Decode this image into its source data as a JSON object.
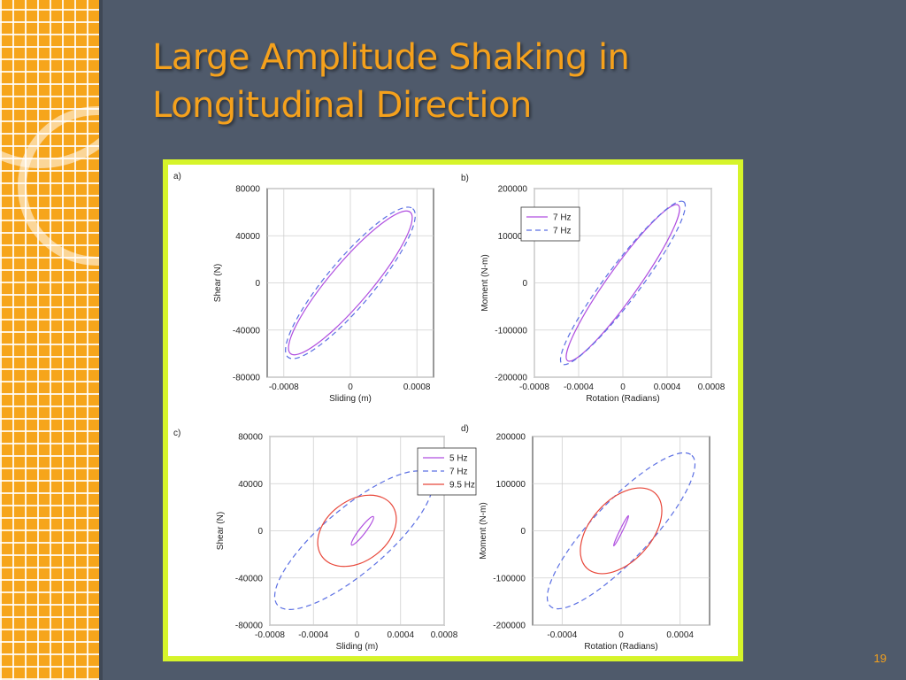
{
  "title": "Large Amplitude Shaking in Longitudinal Direction",
  "page_number": "19",
  "colors": {
    "background": "#4f5a6b",
    "accent": "#f5a11c",
    "figure_border": "#d6f42a"
  },
  "chart_data": [
    {
      "type": "line",
      "panel_label": "a)",
      "xlabel": "Sliding (m)",
      "ylabel": "Shear (N)",
      "xlim": [
        -0.001,
        0.001
      ],
      "ylim": [
        -80000,
        80000
      ],
      "xticks": [
        -0.0008,
        0,
        0.0008
      ],
      "xtick_labels": [
        "-0.0008",
        "0",
        "0.0008"
      ],
      "yticks": [
        80000,
        40000,
        0,
        -40000,
        -80000
      ],
      "ytick_labels": [
        "80000",
        "40000",
        "0",
        "-40000",
        "-80000"
      ],
      "legend": null,
      "series": [
        {
          "color": "#b04fe0",
          "dash": "solid",
          "loop": {
            "center": [
              0,
              0
            ],
            "end": [
              0.00072,
              60000
            ],
            "fraction": 0.22
          }
        },
        {
          "color": "#5b6fe3",
          "dash": "dashed",
          "loop": {
            "center": [
              0,
              0
            ],
            "end": [
              0.00075,
              63000
            ],
            "fraction": 0.24
          }
        }
      ]
    },
    {
      "type": "line",
      "panel_label": "b)",
      "xlabel": "Rotation (Radians)",
      "ylabel": "Moment (N-m)",
      "xlim": [
        -0.0008,
        0.0008
      ],
      "ylim": [
        -200000,
        200000
      ],
      "xticks": [
        -0.0008,
        -0.0004,
        0,
        0.0004,
        0.0008
      ],
      "xtick_labels": [
        "-0.0008",
        "-0.0004",
        "0",
        "0.0004",
        "0.0008"
      ],
      "yticks": [
        200000,
        100000,
        0,
        -100000,
        -200000
      ],
      "ytick_labels": [
        "200000",
        "100000",
        "0",
        "-100000",
        "-200000"
      ],
      "legend": {
        "position": "top-left",
        "entries": [
          "7 Hz",
          "7 Hz"
        ]
      },
      "series": [
        {
          "name": "7 Hz",
          "color": "#b04fe0",
          "dash": "solid",
          "loop": {
            "center": [
              0,
              0
            ],
            "end": [
              0.0005,
              165000
            ],
            "fraction": 0.16
          }
        },
        {
          "name": "7 Hz",
          "color": "#5b6fe3",
          "dash": "dashed",
          "loop": {
            "center": [
              0,
              0
            ],
            "end": [
              0.00055,
              172000
            ],
            "fraction": 0.17
          }
        }
      ]
    },
    {
      "type": "line",
      "panel_label": "c)",
      "xlabel": "Sliding (m)",
      "ylabel": "Shear (N)",
      "xlim": [
        -0.0008,
        0.0008
      ],
      "ylim": [
        -80000,
        80000
      ],
      "xticks": [
        -0.0008,
        -0.0004,
        0,
        0.0004,
        0.0008
      ],
      "xtick_labels": [
        "-0.0008",
        "-0.0004",
        "0",
        "0.0004",
        "0.0008"
      ],
      "yticks": [
        80000,
        40000,
        0,
        -40000,
        -80000
      ],
      "ytick_labels": [
        "80000",
        "40000",
        "0",
        "-40000",
        "-80000"
      ],
      "legend": {
        "position": "top-right",
        "entries": [
          "5 Hz",
          "7 Hz",
          "9.5 Hz"
        ]
      },
      "series": [
        {
          "name": "5 Hz",
          "color": "#b04fe0",
          "dash": "solid",
          "loop": {
            "center": [
              5e-05,
              0
            ],
            "end": [
              0.0001,
              12000
            ],
            "fraction": 0.18
          }
        },
        {
          "name": "7 Hz",
          "color": "#5b6fe3",
          "dash": "dashed",
          "loop": {
            "center": [
              -3e-05,
              -8000
            ],
            "end": [
              0.0007,
              55000
            ],
            "fraction": 0.32
          }
        },
        {
          "name": "9.5 Hz",
          "color": "#e8473a",
          "dash": "solid",
          "loop": {
            "center": [
              0.0,
              0
            ],
            "end": [
              0.00032,
              22000
            ],
            "fraction": 0.7
          }
        }
      ]
    },
    {
      "type": "line",
      "panel_label": "d)",
      "xlabel": "Rotation (Radians)",
      "ylabel": "Moment (N-m)",
      "xlim": [
        -0.0006,
        0.0006
      ],
      "ylim": [
        -200000,
        200000
      ],
      "xticks": [
        -0.0004,
        0,
        0.0004
      ],
      "xtick_labels": [
        "-0.0004",
        "0",
        "0.0004"
      ],
      "yticks": [
        200000,
        100000,
        0,
        -100000,
        -200000
      ],
      "ytick_labels": [
        "200000",
        "100000",
        "0",
        "-100000",
        "-200000"
      ],
      "legend": null,
      "series": [
        {
          "color": "#b04fe0",
          "dash": "solid",
          "loop": {
            "center": [
              0,
              0
            ],
            "end": [
              5e-05,
              32000
            ],
            "fraction": 0.08
          }
        },
        {
          "color": "#5b6fe3",
          "dash": "dashed",
          "loop": {
            "center": [
              0,
              0
            ],
            "end": [
              0.00048,
              160000
            ],
            "fraction": 0.28
          }
        },
        {
          "color": "#e8473a",
          "dash": "solid",
          "loop": {
            "center": [
              0,
              0
            ],
            "end": [
              0.00023,
              80000
            ],
            "fraction": 0.6
          }
        }
      ]
    }
  ]
}
